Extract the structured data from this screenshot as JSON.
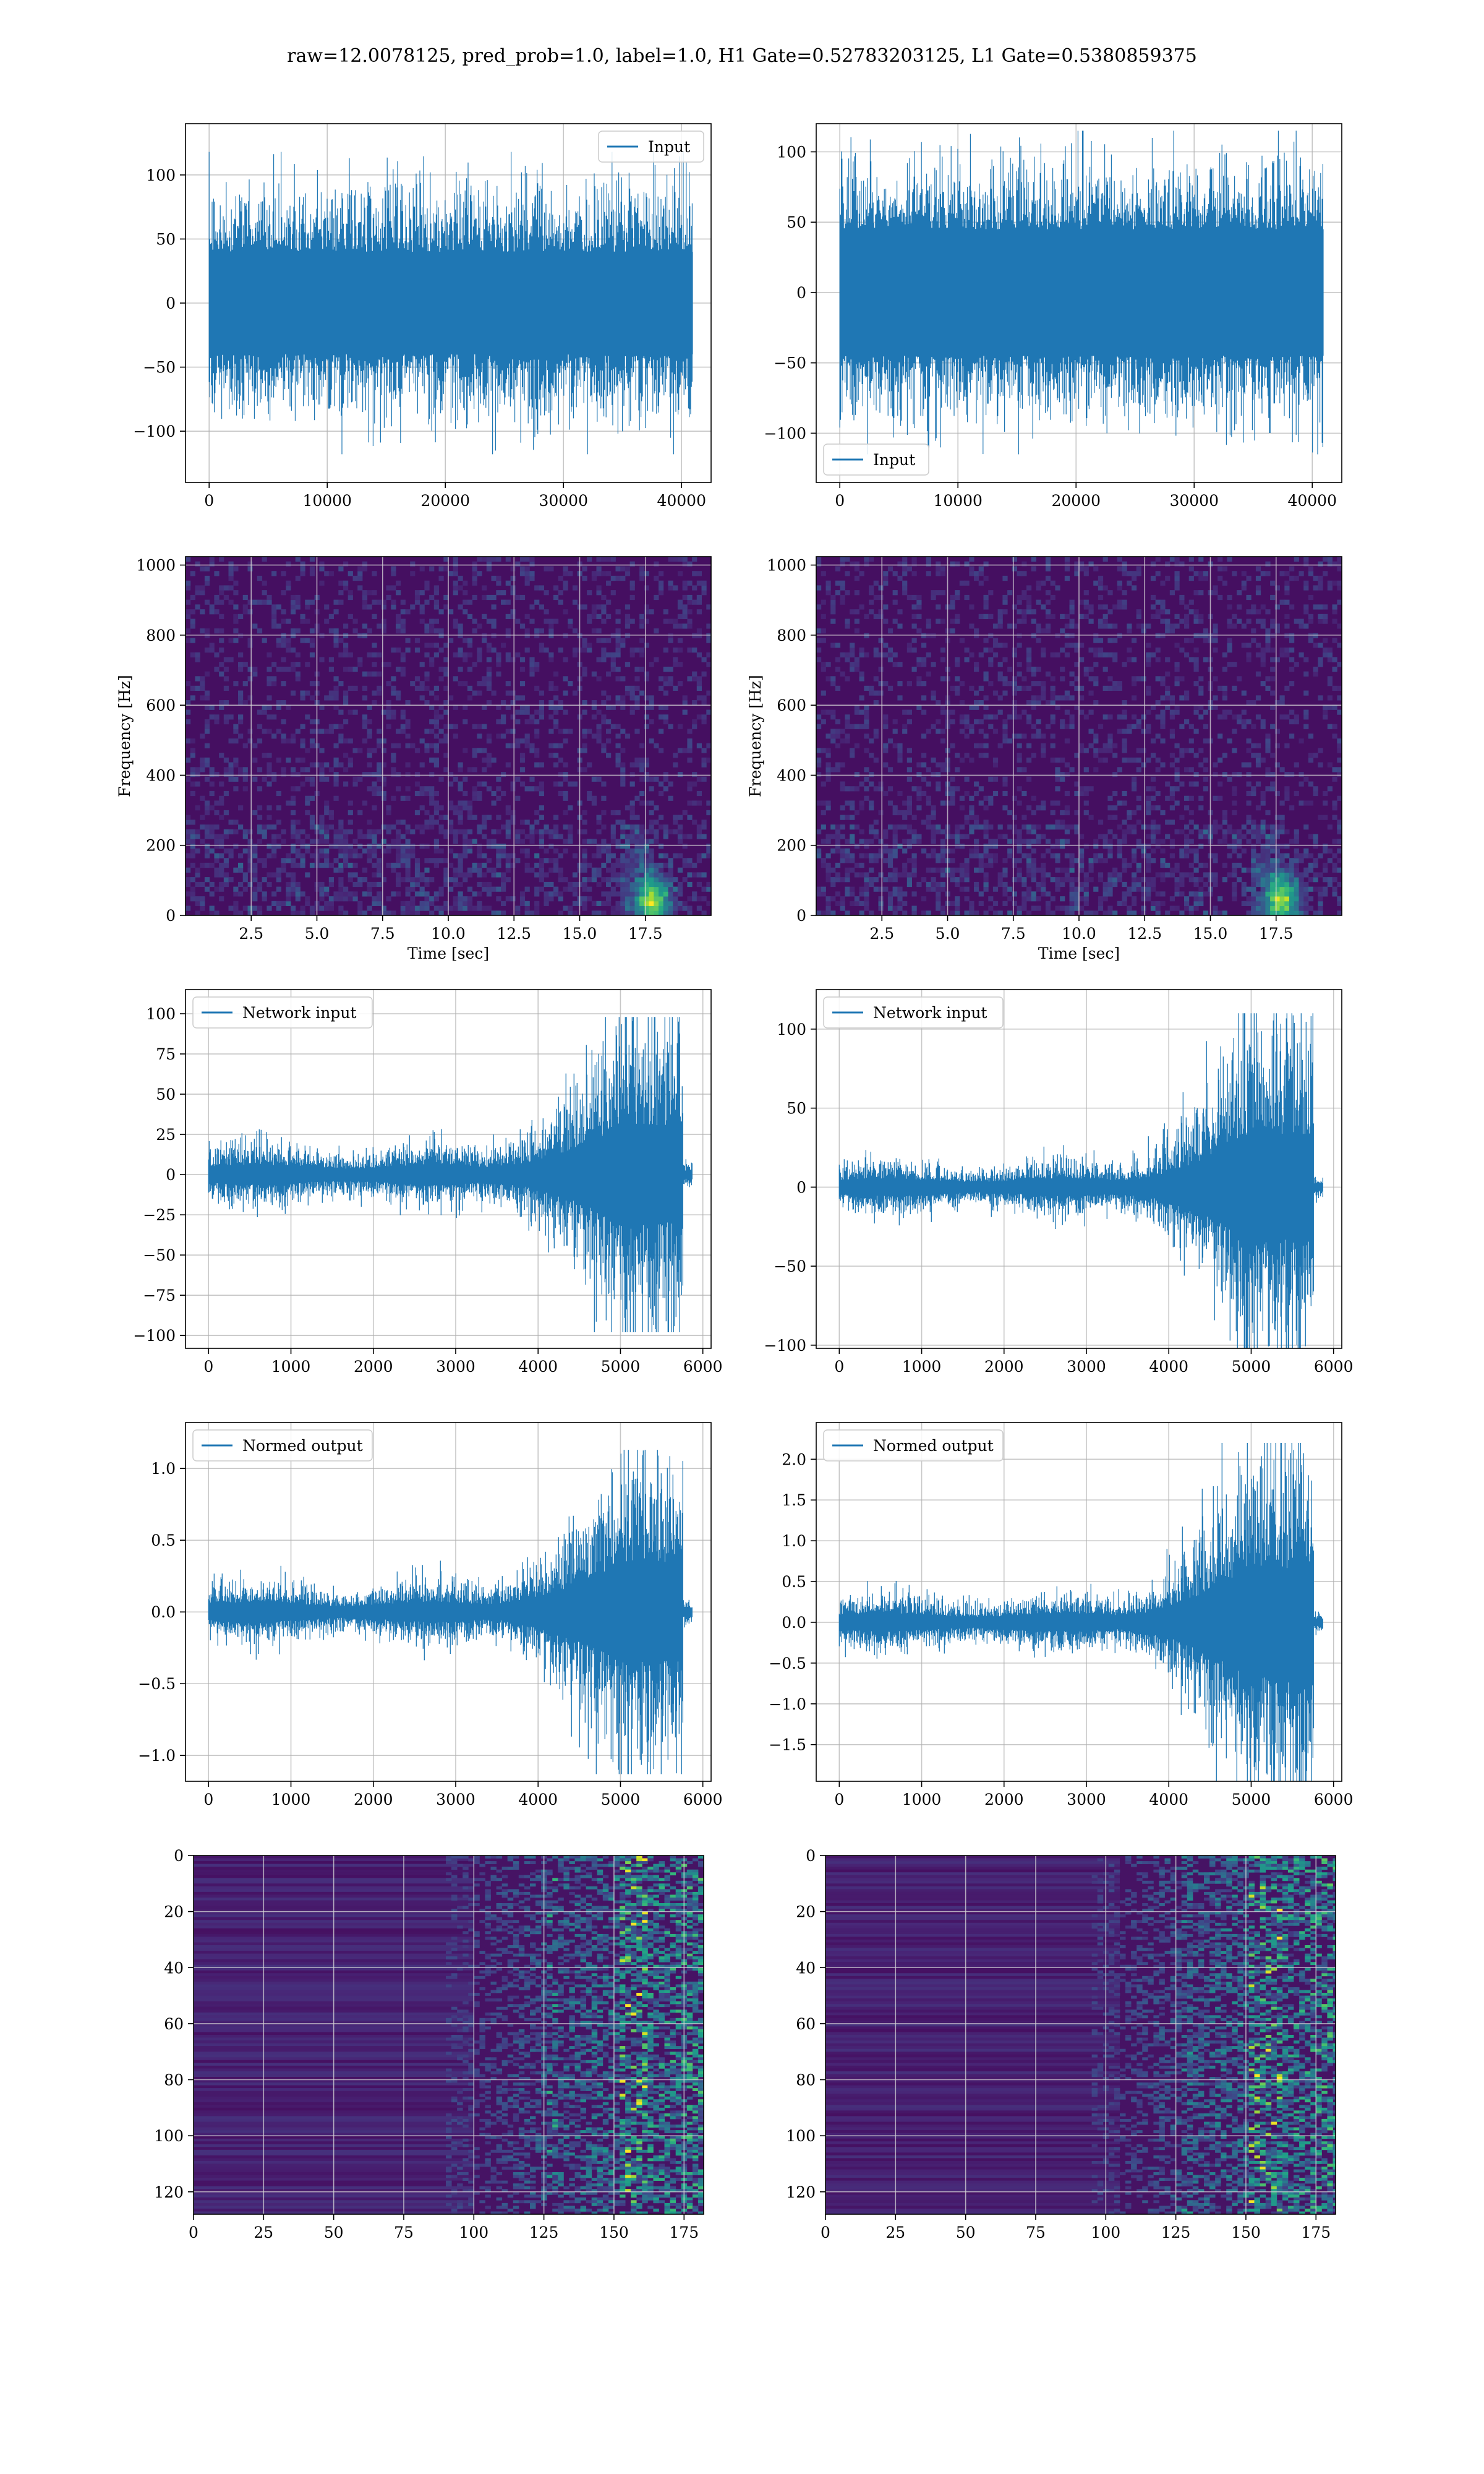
{
  "figure": {
    "title": "raw=12.0078125, pred_prob=1.0, label=1.0, H1 Gate=0.52783203125, L1 Gate=0.5380859375",
    "line_color": "#1f77b4",
    "colormap": "viridis"
  },
  "chart_data": [
    {
      "id": "input_h1",
      "type": "line",
      "series": [
        {
          "name": "Input"
        }
      ],
      "legend": "top-right",
      "grid": true,
      "xlim": [
        -2000,
        42500
      ],
      "ylim": [
        -140,
        140
      ],
      "xticks": [
        0,
        10000,
        20000,
        30000,
        40000
      ],
      "yticks": [
        -100,
        -50,
        0,
        50,
        100
      ],
      "signal": {
        "x_range": [
          0,
          40960
        ],
        "core_amplitude": 40,
        "peak_amplitude": 118,
        "shape": "stationary noise"
      }
    },
    {
      "id": "input_l1",
      "type": "line",
      "series": [
        {
          "name": "Input"
        }
      ],
      "legend": "bottom-left",
      "grid": true,
      "xlim": [
        -2000,
        42500
      ],
      "ylim": [
        -135,
        120
      ],
      "xticks": [
        0,
        10000,
        20000,
        30000,
        40000
      ],
      "yticks": [
        -100,
        -50,
        0,
        50,
        100
      ],
      "signal": {
        "x_range": [
          0,
          40960
        ],
        "core_amplitude": 45,
        "peak_amplitude": 115,
        "shape": "stationary noise"
      }
    },
    {
      "id": "spectrogram_h1",
      "type": "heatmap",
      "xlabel": "Time [sec]",
      "ylabel": "Frequency [Hz]",
      "grid": true,
      "xlim": [
        0,
        20
      ],
      "ylim": [
        0,
        1024
      ],
      "xticks": [
        2.5,
        5.0,
        7.5,
        10.0,
        12.5,
        15.0,
        17.5
      ],
      "yticks": [
        0,
        200,
        400,
        600,
        800,
        1000
      ],
      "hotspot": {
        "time": 17.8,
        "frequency": 40
      }
    },
    {
      "id": "spectrogram_l1",
      "type": "heatmap",
      "xlabel": "Time [sec]",
      "ylabel": "Frequency [Hz]",
      "grid": true,
      "xlim": [
        0,
        20
      ],
      "ylim": [
        0,
        1024
      ],
      "xticks": [
        2.5,
        5.0,
        7.5,
        10.0,
        12.5,
        15.0,
        17.5
      ],
      "yticks": [
        0,
        200,
        400,
        600,
        800,
        1000
      ],
      "hotspot": {
        "time": 17.7,
        "frequency": 45
      }
    },
    {
      "id": "network_input_h1",
      "type": "line",
      "series": [
        {
          "name": "Network input"
        }
      ],
      "legend": "top-left",
      "grid": true,
      "xlim": [
        -280,
        6100
      ],
      "ylim": [
        -108,
        115
      ],
      "xticks": [
        0,
        1000,
        2000,
        3000,
        4000,
        5000,
        6000
      ],
      "yticks": [
        -100,
        -75,
        -50,
        -25,
        0,
        25,
        50,
        75,
        100
      ],
      "signal": {
        "x_range": [
          0,
          5760
        ],
        "base_amplitude": 9,
        "peak_amplitude": 98,
        "burst_start": 3400,
        "peak_at": 5000,
        "burst_end": 5760,
        "tail_end": 5870,
        "shape": "chirp burst"
      }
    },
    {
      "id": "network_input_l1",
      "type": "line",
      "series": [
        {
          "name": "Network input"
        }
      ],
      "legend": "top-left",
      "grid": true,
      "xlim": [
        -280,
        6100
      ],
      "ylim": [
        -102,
        125
      ],
      "xticks": [
        0,
        1000,
        2000,
        3000,
        4000,
        5000,
        6000
      ],
      "yticks": [
        -100,
        -50,
        0,
        50,
        100
      ],
      "signal": {
        "x_range": [
          0,
          5760
        ],
        "base_amplitude": 8,
        "peak_amplitude": 110,
        "burst_start": 3400,
        "peak_at": 5000,
        "burst_end": 5760,
        "tail_end": 5870,
        "shape": "chirp burst"
      }
    },
    {
      "id": "normed_output_h1",
      "type": "line",
      "series": [
        {
          "name": "Normed output"
        }
      ],
      "legend": "top-left",
      "grid": true,
      "xlim": [
        -280,
        6100
      ],
      "ylim": [
        -1.18,
        1.32
      ],
      "xticks": [
        0,
        1000,
        2000,
        3000,
        4000,
        5000,
        6000
      ],
      "yticks": [
        -1.0,
        -0.5,
        0.0,
        0.5,
        1.0
      ],
      "signal": {
        "x_range": [
          0,
          5760
        ],
        "base_amplitude": 0.1,
        "peak_amplitude": 1.13,
        "burst_start": 3400,
        "peak_at": 5000,
        "burst_end": 5760,
        "tail_end": 5870,
        "shape": "chirp burst"
      }
    },
    {
      "id": "normed_output_l1",
      "type": "line",
      "series": [
        {
          "name": "Normed output"
        }
      ],
      "legend": "top-left",
      "grid": true,
      "xlim": [
        -280,
        6100
      ],
      "ylim": [
        -1.95,
        2.45
      ],
      "xticks": [
        0,
        1000,
        2000,
        3000,
        4000,
        5000,
        6000
      ],
      "yticks": [
        -1.5,
        -1.0,
        -0.5,
        0.0,
        0.5,
        1.0,
        1.5,
        2.0
      ],
      "signal": {
        "x_range": [
          0,
          5760
        ],
        "base_amplitude": 0.16,
        "peak_amplitude": 2.2,
        "burst_start": 3400,
        "peak_at": 5000,
        "burst_end": 5760,
        "tail_end": 5870,
        "shape": "chirp burst"
      }
    },
    {
      "id": "feature_map_h1",
      "type": "heatmap",
      "grid": true,
      "xlim": [
        0,
        182
      ],
      "ylim": [
        128,
        0
      ],
      "y_inverted": true,
      "xticks": [
        0,
        25,
        50,
        75,
        100,
        125,
        150,
        175
      ],
      "yticks": [
        0,
        20,
        40,
        60,
        80,
        100,
        120
      ],
      "activation_onset": 100
    },
    {
      "id": "feature_map_l1",
      "type": "heatmap",
      "grid": true,
      "xlim": [
        0,
        182
      ],
      "ylim": [
        128,
        0
      ],
      "y_inverted": true,
      "xticks": [
        0,
        25,
        50,
        75,
        100,
        125,
        150,
        175
      ],
      "yticks": [
        0,
        20,
        40,
        60,
        80,
        100,
        120
      ],
      "activation_onset": 105
    }
  ]
}
